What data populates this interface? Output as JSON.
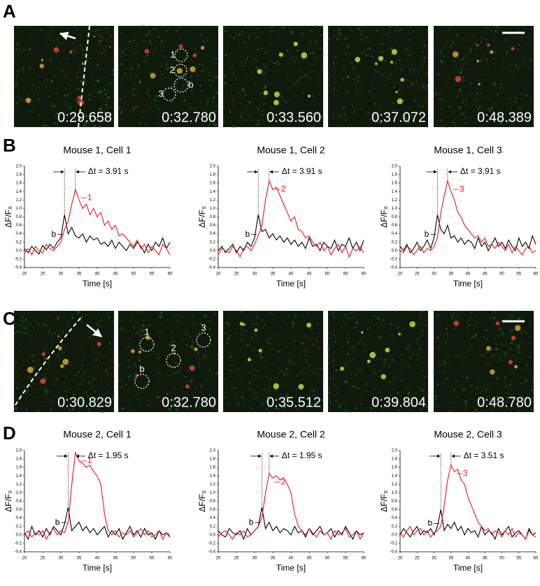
{
  "figure_labels": [
    "A",
    "B",
    "C",
    "D"
  ],
  "panels": [
    {
      "images": [
        {
          "timestamp": "0:29.658"
        },
        {
          "timestamp": "0:32.780"
        },
        {
          "timestamp": "0:33.560"
        },
        {
          "timestamp": "0:37.072"
        },
        {
          "timestamp": "0:48.389"
        }
      ],
      "markers": [
        {
          "label": "1"
        },
        {
          "label": "2"
        },
        {
          "label": "3"
        },
        {
          "label": "b"
        }
      ]
    },
    {
      "images": [
        {
          "timestamp": "0:30.829"
        },
        {
          "timestamp": "0:32.780"
        },
        {
          "timestamp": "0:35.512"
        },
        {
          "timestamp": "0:39.804"
        },
        {
          "timestamp": "0:48.780"
        }
      ],
      "markers": [
        {
          "label": "1"
        },
        {
          "label": "2"
        },
        {
          "label": "3"
        },
        {
          "label": "b"
        }
      ]
    }
  ],
  "chart_data": [
    {
      "type": "line",
      "title": "Mouse 1, Cell 1",
      "xlabel": "Time [s]",
      "ylabel": "ΔF/F₀",
      "annotation": "Δt = 3.91 s",
      "x": [
        20,
        21,
        22,
        23,
        24,
        25,
        26,
        27,
        28,
        29,
        30,
        31,
        32,
        33,
        34,
        35,
        36,
        37,
        38,
        39,
        40,
        41,
        42,
        43,
        44,
        45,
        46,
        47,
        48,
        49,
        50,
        51,
        52,
        53,
        54,
        55,
        56,
        57,
        58,
        59,
        60
      ],
      "xlim": [
        20,
        60
      ],
      "xticks": [
        20,
        25,
        30,
        35,
        40,
        45,
        50,
        55,
        60
      ],
      "ylim": [
        -0.4,
        2.0
      ],
      "yticks": [
        -0.4,
        -0.2,
        {
          "value": 0,
          "label": "0.0"
        },
        0.2,
        0.4,
        0.6,
        0.8,
        {
          "value": 1,
          "label": "1.0"
        },
        1.2,
        1.4,
        1.6,
        1.8,
        {
          "value": 2,
          "label": "2.0"
        }
      ],
      "series": [
        {
          "name": "b",
          "color": "#000000",
          "values": [
            0.05,
            -0.05,
            0.1,
            0.0,
            -0.08,
            0.12,
            0.02,
            0.15,
            0.05,
            0.2,
            0.3,
            0.85,
            0.4,
            0.55,
            0.35,
            0.3,
            0.4,
            0.2,
            0.35,
            0.25,
            0.3,
            0.15,
            0.2,
            0.1,
            0.25,
            0.05,
            0.2,
            0.1,
            0.0,
            0.15,
            0.05,
            0.2,
            0.1,
            -0.05,
            0.15,
            0.0,
            0.2,
            0.1,
            0.3,
            0.05,
            0.2
          ]
        },
        {
          "name": "1",
          "color": "#e8191f",
          "values": [
            -0.05,
            0.05,
            -0.1,
            0.1,
            0.0,
            -0.05,
            0.15,
            0.05,
            0.0,
            0.1,
            0.2,
            0.5,
            0.7,
            1.1,
            1.45,
            1.2,
            1.0,
            1.1,
            0.85,
            1.0,
            0.8,
            0.9,
            0.6,
            0.7,
            0.5,
            0.6,
            0.35,
            0.4,
            0.3,
            0.2,
            0.1,
            0.25,
            0.05,
            0.15,
            -0.05,
            0.1,
            0.0,
            -0.1,
            0.15,
            0.05,
            -0.1
          ]
        }
      ]
    },
    {
      "type": "line",
      "title": "Mouse 1, Cell 2",
      "xlabel": "Time [s]",
      "ylabel": "ΔF/F₀",
      "annotation": "Δt = 3.91 s",
      "x": [
        20,
        21,
        22,
        23,
        24,
        25,
        26,
        27,
        28,
        29,
        30,
        31,
        32,
        33,
        34,
        35,
        36,
        37,
        38,
        39,
        40,
        41,
        42,
        43,
        44,
        45,
        46,
        47,
        48,
        49,
        50,
        51,
        52,
        53,
        54,
        55,
        56,
        57,
        58,
        59,
        60
      ],
      "xlim": [
        20,
        60
      ],
      "xticks": [
        20,
        25,
        30,
        35,
        40,
        45,
        50,
        55,
        60
      ],
      "ylim": [
        -0.4,
        2.0
      ],
      "yticks": [
        -0.4,
        -0.2,
        {
          "value": 0,
          "label": "0.0"
        },
        0.2,
        0.4,
        0.6,
        0.8,
        {
          "value": 1,
          "label": "1.0"
        },
        1.2,
        1.4,
        1.6,
        1.8,
        {
          "value": 2,
          "label": "2.0"
        }
      ],
      "series": [
        {
          "name": "b",
          "color": "#000000",
          "values": [
            0.0,
            0.1,
            -0.05,
            0.05,
            0.15,
            -0.05,
            0.1,
            0.0,
            0.2,
            0.1,
            0.3,
            0.85,
            0.45,
            0.5,
            0.3,
            0.4,
            0.25,
            0.35,
            0.2,
            0.3,
            0.15,
            0.25,
            0.1,
            0.2,
            0.05,
            0.3,
            0.1,
            0.15,
            0.0,
            0.2,
            0.1,
            0.05,
            0.25,
            0.0,
            0.15,
            0.1,
            0.3,
            0.05,
            0.2,
            0.0,
            0.25
          ]
        },
        {
          "name": "2",
          "color": "#e8191f",
          "values": [
            -0.1,
            0.05,
            0.0,
            -0.05,
            0.1,
            0.0,
            -0.15,
            0.05,
            0.1,
            0.0,
            0.15,
            0.35,
            0.6,
            1.2,
            1.65,
            1.45,
            1.5,
            1.3,
            1.1,
            0.9,
            0.7,
            0.8,
            0.5,
            0.45,
            0.3,
            0.35,
            0.2,
            0.1,
            0.2,
            0.0,
            0.1,
            -0.1,
            0.05,
            0.15,
            -0.05,
            0.1,
            -0.15,
            0.05,
            0.0,
            0.1,
            -0.05
          ]
        }
      ]
    },
    {
      "type": "line",
      "title": "Mouse 1, Cell 3",
      "xlabel": "Time [s]",
      "ylabel": "ΔF/F₀",
      "annotation": "Δt = 3.91 s",
      "x": [
        20,
        21,
        22,
        23,
        24,
        25,
        26,
        27,
        28,
        29,
        30,
        31,
        32,
        33,
        34,
        35,
        36,
        37,
        38,
        39,
        40,
        41,
        42,
        43,
        44,
        45,
        46,
        47,
        48,
        49,
        50,
        51,
        52,
        53,
        54,
        55,
        56,
        57,
        58,
        59,
        60
      ],
      "xlim": [
        20,
        60
      ],
      "xticks": [
        20,
        25,
        30,
        35,
        40,
        45,
        50,
        55,
        60
      ],
      "ylim": [
        -0.4,
        2.0
      ],
      "yticks": [
        -0.4,
        -0.2,
        {
          "value": 0,
          "label": "0.0"
        },
        0.2,
        0.4,
        0.6,
        0.8,
        {
          "value": 1,
          "label": "1.0"
        },
        1.2,
        1.4,
        1.6,
        1.8,
        {
          "value": 2,
          "label": "2.0"
        }
      ],
      "series": [
        {
          "name": "b",
          "color": "#000000",
          "values": [
            0.1,
            0.0,
            0.15,
            -0.05,
            0.05,
            0.2,
            0.0,
            0.1,
            0.25,
            0.05,
            0.3,
            0.85,
            0.5,
            0.4,
            0.6,
            0.3,
            0.35,
            0.2,
            0.3,
            0.15,
            0.25,
            0.2,
            0.05,
            0.3,
            0.1,
            0.2,
            0.0,
            0.15,
            0.3,
            0.1,
            0.2,
            0.05,
            0.25,
            0.1,
            0.0,
            0.3,
            0.1,
            0.2,
            0.05,
            0.35,
            0.15
          ]
        },
        {
          "name": "3",
          "color": "#e8191f",
          "values": [
            0.0,
            -0.05,
            0.1,
            0.05,
            -0.1,
            0.0,
            0.1,
            -0.05,
            0.05,
            0.0,
            0.1,
            0.3,
            0.9,
            1.3,
            1.65,
            1.4,
            1.2,
            0.9,
            0.8,
            0.6,
            0.5,
            0.4,
            0.3,
            0.35,
            0.2,
            0.3,
            0.1,
            0.15,
            0.05,
            0.2,
            0.1,
            0.0,
            0.15,
            -0.05,
            0.1,
            0.0,
            -0.1,
            0.05,
            0.1,
            -0.05,
            0.0
          ]
        }
      ]
    },
    {
      "type": "line",
      "title": "Mouse 2, Cell 1",
      "xlabel": "Time [s]",
      "ylabel": "ΔF/F₀",
      "annotation": "Δt = 1.95 s",
      "x": [
        20,
        21,
        22,
        23,
        24,
        25,
        26,
        27,
        28,
        29,
        30,
        31,
        32,
        33,
        34,
        35,
        36,
        37,
        38,
        39,
        40,
        41,
        42,
        43,
        44,
        45,
        46,
        47,
        48,
        49,
        50,
        51,
        52,
        53,
        54,
        55,
        56,
        57,
        58,
        59,
        60
      ],
      "xlim": [
        20,
        60
      ],
      "xticks": [
        20,
        25,
        30,
        35,
        40,
        45,
        50,
        55,
        60
      ],
      "ylim": [
        -0.4,
        2.0
      ],
      "yticks": [
        -0.4,
        -0.2,
        {
          "value": 0,
          "label": "0.0"
        },
        0.2,
        0.4,
        0.6,
        0.8,
        {
          "value": 1,
          "label": "1.0"
        },
        1.2,
        1.4,
        1.6,
        1.8,
        {
          "value": 2,
          "label": "2.0"
        }
      ],
      "series": [
        {
          "name": "b",
          "color": "#000000",
          "values": [
            0.05,
            -0.1,
            0.2,
            0.0,
            0.1,
            -0.05,
            0.15,
            0.0,
            0.2,
            0.1,
            0.0,
            0.25,
            0.65,
            0.1,
            0.2,
            0.3,
            0.1,
            0.2,
            0.05,
            0.15,
            0.0,
            0.1,
            0.2,
            -0.05,
            0.1,
            0.0,
            0.15,
            -0.1,
            0.05,
            0.2,
            0.0,
            0.1,
            -0.05,
            0.15,
            0.0,
            0.05,
            -0.1,
            0.1,
            0.0,
            0.05,
            -0.05
          ]
        },
        {
          "name": "1",
          "color": "#e8191f",
          "values": [
            0.0,
            0.1,
            -0.05,
            0.05,
            0.0,
            0.1,
            -0.1,
            0.05,
            0.15,
            0.0,
            0.1,
            0.05,
            0.3,
            1.2,
            1.95,
            1.75,
            1.7,
            1.6,
            1.65,
            1.5,
            1.4,
            1.2,
            0.5,
            0.1,
            0.0,
            0.1,
            -0.05,
            0.05,
            0.0,
            0.1,
            -0.05,
            0.05,
            0.15,
            0.0,
            0.1,
            -0.05,
            0.0,
            0.1,
            -0.1,
            0.05,
            0.0
          ]
        }
      ]
    },
    {
      "type": "line",
      "title": "Mouse 2, Cell 2",
      "xlabel": "Time [s]",
      "ylabel": "ΔF/F₀",
      "annotation": "Δt = 1.95 s",
      "x": [
        20,
        21,
        22,
        23,
        24,
        25,
        26,
        27,
        28,
        29,
        30,
        31,
        32,
        33,
        34,
        35,
        36,
        37,
        38,
        39,
        40,
        41,
        42,
        43,
        44,
        45,
        46,
        47,
        48,
        49,
        50,
        51,
        52,
        53,
        54,
        55,
        56,
        57,
        58,
        59,
        60
      ],
      "xlim": [
        20,
        60
      ],
      "xticks": [
        20,
        25,
        30,
        35,
        40,
        45,
        50,
        55,
        60
      ],
      "ylim": [
        -0.4,
        2.0
      ],
      "yticks": [
        -0.4,
        -0.2,
        {
          "value": 0,
          "label": "0.0"
        },
        0.2,
        0.4,
        0.6,
        0.8,
        {
          "value": 1,
          "label": "1.0"
        },
        1.2,
        1.4,
        1.6,
        1.8,
        {
          "value": 2,
          "label": "2.0"
        }
      ],
      "series": [
        {
          "name": "b",
          "color": "#000000",
          "values": [
            0.1,
            0.0,
            -0.05,
            0.15,
            0.05,
            0.0,
            0.1,
            -0.1,
            0.15,
            0.0,
            0.1,
            0.2,
            0.65,
            0.15,
            0.3,
            0.1,
            0.2,
            0.05,
            0.15,
            0.1,
            0.0,
            0.2,
            0.05,
            0.1,
            -0.05,
            0.15,
            0.0,
            0.1,
            0.2,
            0.0,
            0.05,
            0.15,
            -0.05,
            0.1,
            0.0,
            0.2,
            0.05,
            -0.1,
            0.1,
            0.0,
            0.05
          ]
        },
        {
          "name": "2",
          "color": "#e8191f",
          "values": [
            -0.05,
            0.05,
            0.1,
            0.0,
            -0.1,
            0.05,
            0.0,
            0.1,
            -0.05,
            0.0,
            0.1,
            0.2,
            0.4,
            1.0,
            1.45,
            1.35,
            1.4,
            1.3,
            1.35,
            1.2,
            1.0,
            0.5,
            0.2,
            0.1,
            0.0,
            0.15,
            0.05,
            -0.05,
            0.1,
            0.0,
            0.05,
            -0.1,
            0.1,
            0.0,
            0.05,
            0.15,
            -0.05,
            0.0,
            0.1,
            -0.1,
            0.05
          ]
        }
      ]
    },
    {
      "type": "line",
      "title": "Mouse 2, Cell 3",
      "xlabel": "Time [s]",
      "ylabel": "ΔF/F₀",
      "annotation": "Δt = 3.51 s",
      "x": [
        20,
        21,
        22,
        23,
        24,
        25,
        26,
        27,
        28,
        29,
        30,
        31,
        32,
        33,
        34,
        35,
        36,
        37,
        38,
        39,
        40,
        41,
        42,
        43,
        44,
        45,
        46,
        47,
        48,
        49,
        50,
        51,
        52,
        53,
        54,
        55,
        56,
        57,
        58,
        59,
        60
      ],
      "xlim": [
        20,
        60
      ],
      "xticks": [
        20,
        25,
        30,
        35,
        40,
        45,
        50,
        55,
        60
      ],
      "ylim": [
        -0.4,
        2.0
      ],
      "yticks": [
        -0.4,
        -0.2,
        {
          "value": 0,
          "label": "0.0"
        },
        0.2,
        0.4,
        0.6,
        0.8,
        {
          "value": 1,
          "label": "1.0"
        },
        1.2,
        1.4,
        1.6,
        1.8,
        {
          "value": 2,
          "label": "2.0"
        }
      ],
      "series": [
        {
          "name": "b",
          "color": "#000000",
          "values": [
            0.0,
            0.15,
            0.05,
            -0.05,
            0.1,
            0.2,
            0.0,
            0.1,
            0.05,
            0.15,
            0.0,
            0.2,
            0.6,
            0.1,
            0.25,
            0.15,
            0.3,
            0.1,
            0.2,
            0.0,
            0.15,
            0.05,
            0.1,
            -0.05,
            0.2,
            0.0,
            0.1,
            0.05,
            -0.1,
            0.15,
            0.0,
            0.1,
            0.2,
            -0.05,
            0.05,
            0.1,
            0.0,
            -0.1,
            0.15,
            0.0,
            0.05
          ]
        },
        {
          "name": "3",
          "color": "#e8191f",
          "values": [
            0.05,
            -0.05,
            0.1,
            0.2,
            0.0,
            0.1,
            0.15,
            0.0,
            0.1,
            -0.05,
            0.05,
            0.1,
            0.2,
            0.7,
            1.3,
            1.65,
            1.5,
            1.55,
            1.3,
            1.2,
            0.9,
            0.7,
            0.5,
            0.3,
            0.2,
            0.1,
            0.15,
            0.0,
            0.1,
            0.05,
            -0.05,
            0.1,
            0.0,
            0.15,
            -0.05,
            0.05,
            0.0,
            -0.1,
            0.1,
            0.0,
            -0.05
          ]
        }
      ]
    }
  ]
}
